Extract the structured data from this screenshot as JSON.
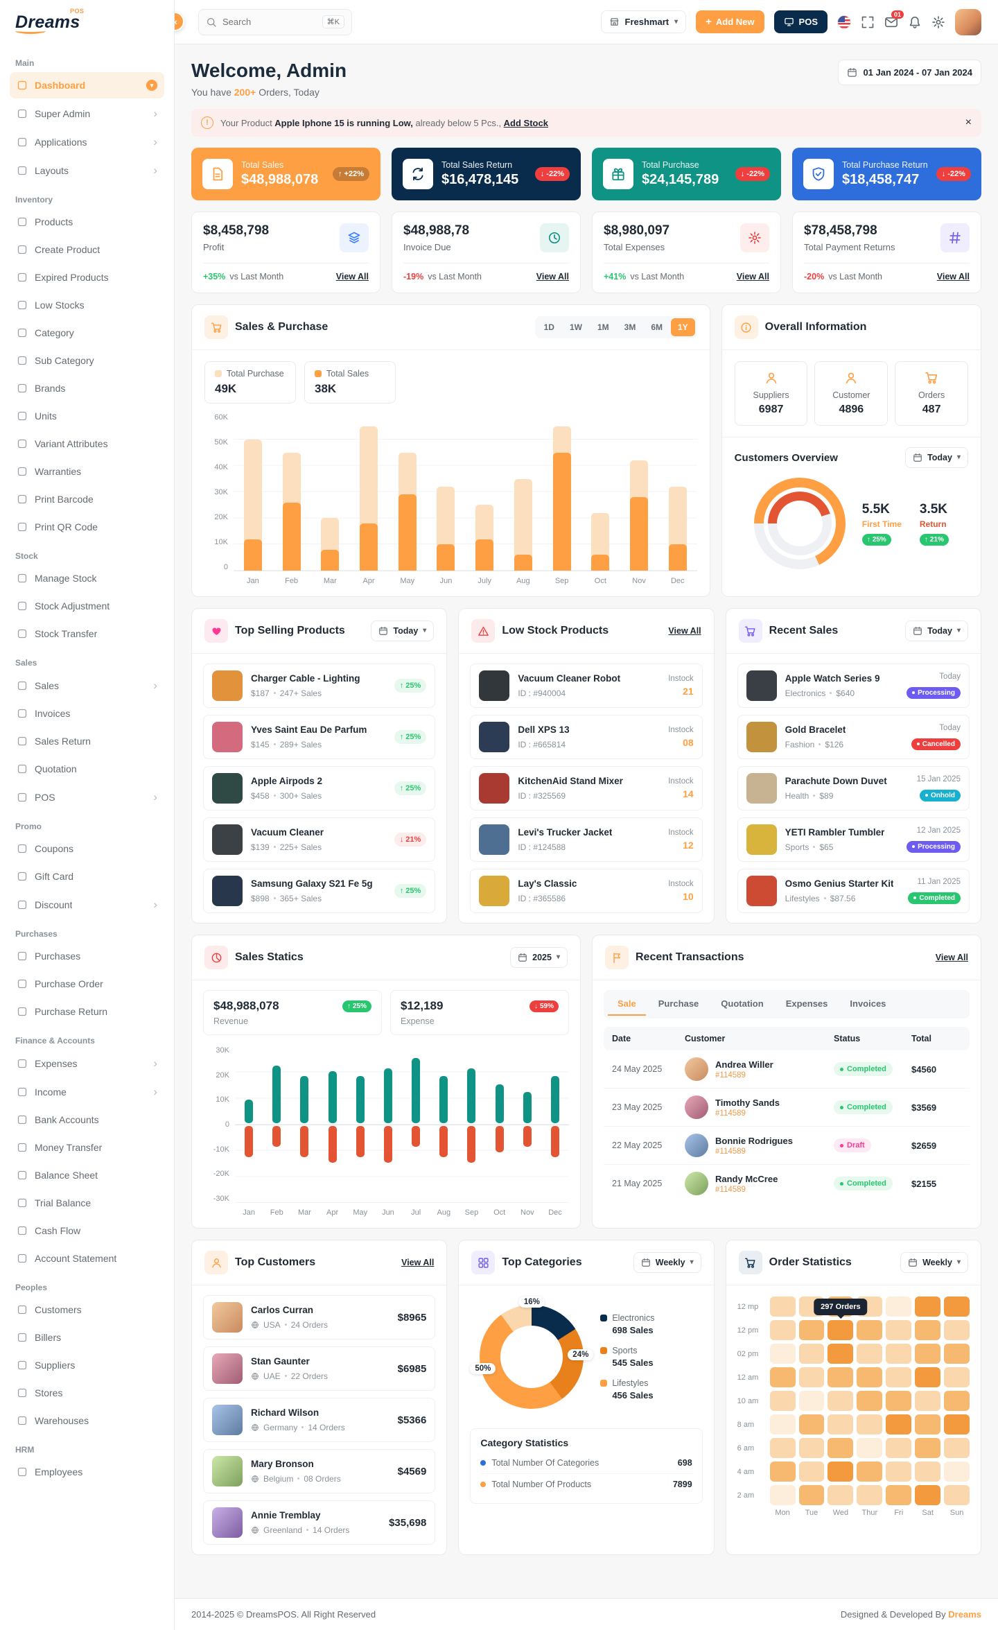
{
  "theme": {
    "primary": "#FE9F43",
    "secondary": "#092C4C",
    "success": "#28C76F",
    "danger": "#EF3E3E",
    "teal": "#0E9384",
    "blue": "#2E6EDC",
    "purple": "#6E5BF0",
    "pink": "#FD3995",
    "cyan": "#17B0CE"
  },
  "brand": {
    "name": "Dreams",
    "badge": "POS"
  },
  "header": {
    "search_placeholder": "Search",
    "search_shortcut": "⌘K",
    "store": "Freshmart",
    "add_new": "Add New",
    "pos": "POS",
    "mail_badge": "01"
  },
  "sidebar": {
    "sections": [
      {
        "title": "Main",
        "items": [
          {
            "label": "Dashboard",
            "icon": "dashboard-icon",
            "chevron": "down",
            "active": true
          },
          {
            "label": "Super Admin",
            "icon": "super-admin-icon",
            "chevron": "right"
          },
          {
            "label": "Applications",
            "icon": "applications-icon",
            "chevron": "right"
          },
          {
            "label": "Layouts",
            "icon": "layouts-icon",
            "chevron": "right"
          }
        ]
      },
      {
        "title": "Inventory",
        "items": [
          {
            "label": "Products",
            "icon": "products-icon"
          },
          {
            "label": "Create Product",
            "icon": "create-product-icon"
          },
          {
            "label": "Expired Products",
            "icon": "expired-products-icon"
          },
          {
            "label": "Low Stocks",
            "icon": "low-stocks-icon"
          },
          {
            "label": "Category",
            "icon": "category-icon"
          },
          {
            "label": "Sub Category",
            "icon": "sub-category-icon"
          },
          {
            "label": "Brands",
            "icon": "brands-icon"
          },
          {
            "label": "Units",
            "icon": "units-icon"
          },
          {
            "label": "Variant Attributes",
            "icon": "variant-attributes-icon"
          },
          {
            "label": "Warranties",
            "icon": "warranties-icon"
          },
          {
            "label": "Print Barcode",
            "icon": "print-barcode-icon"
          },
          {
            "label": "Print QR Code",
            "icon": "print-qr-code-icon"
          }
        ]
      },
      {
        "title": "Stock",
        "items": [
          {
            "label": "Manage Stock",
            "icon": "manage-stock-icon"
          },
          {
            "label": "Stock Adjustment",
            "icon": "stock-adjustment-icon"
          },
          {
            "label": "Stock Transfer",
            "icon": "stock-transfer-icon"
          }
        ]
      },
      {
        "title": "Sales",
        "items": [
          {
            "label": "Sales",
            "icon": "sales-icon",
            "chevron": "right"
          },
          {
            "label": "Invoices",
            "icon": "invoices-icon"
          },
          {
            "label": "Sales Return",
            "icon": "sales-return-icon"
          },
          {
            "label": "Quotation",
            "icon": "quotation-icon"
          },
          {
            "label": "POS",
            "icon": "pos-icon",
            "chevron": "right"
          }
        ]
      },
      {
        "title": "Promo",
        "items": [
          {
            "label": "Coupons",
            "icon": "coupons-icon"
          },
          {
            "label": "Gift Card",
            "icon": "gift-card-icon"
          },
          {
            "label": "Discount",
            "icon": "discount-icon",
            "chevron": "right"
          }
        ]
      },
      {
        "title": "Purchases",
        "items": [
          {
            "label": "Purchases",
            "icon": "purchases-icon"
          },
          {
            "label": "Purchase Order",
            "icon": "purchase-order-icon"
          },
          {
            "label": "Purchase Return",
            "icon": "purchase-return-icon"
          }
        ]
      },
      {
        "title": "Finance & Accounts",
        "items": [
          {
            "label": "Expenses",
            "icon": "expenses-icon",
            "chevron": "right"
          },
          {
            "label": "Income",
            "icon": "income-icon",
            "chevron": "right"
          },
          {
            "label": "Bank Accounts",
            "icon": "bank-accounts-icon"
          },
          {
            "label": "Money Transfer",
            "icon": "money-transfer-icon"
          },
          {
            "label": "Balance Sheet",
            "icon": "balance-sheet-icon"
          },
          {
            "label": "Trial Balance",
            "icon": "trial-balance-icon"
          },
          {
            "label": "Cash Flow",
            "icon": "cash-flow-icon"
          },
          {
            "label": "Account Statement",
            "icon": "account-statement-icon"
          }
        ]
      },
      {
        "title": "Peoples",
        "items": [
          {
            "label": "Customers",
            "icon": "customers-icon"
          },
          {
            "label": "Billers",
            "icon": "billers-icon"
          },
          {
            "label": "Suppliers",
            "icon": "suppliers-icon"
          },
          {
            "label": "Stores",
            "icon": "stores-icon"
          },
          {
            "label": "Warehouses",
            "icon": "warehouses-icon"
          }
        ]
      },
      {
        "title": "HRM",
        "items": [
          {
            "label": "Employees",
            "icon": "employees-icon"
          }
        ]
      }
    ]
  },
  "welcome": {
    "title": "Welcome, Admin",
    "sub_prefix": "You have ",
    "sub_highlight": "200+",
    "sub_suffix": " Orders, Today",
    "date_range": "01 Jan 2024 - 07 Jan 2024"
  },
  "alert": {
    "prefix": "Your Product ",
    "bold": "Apple Iphone 15 is running Low,",
    "suffix": " already below 5 Pcs., ",
    "link_label": "Add Stock"
  },
  "kpi_cards": [
    {
      "label": "Total Sales",
      "value": "$48,988,078",
      "delta": "+22%",
      "trend": "up",
      "bg": "#FE9F43",
      "icon": "filetext",
      "icon_name": "file-text-icon"
    },
    {
      "label": "Total Sales Return",
      "value": "$16,478,145",
      "delta": "-22%",
      "trend": "down",
      "bg": "#092C4C",
      "icon": "repeat",
      "icon_name": "repeat-icon"
    },
    {
      "label": "Total Purchase",
      "value": "$24,145,789",
      "delta": "-22%",
      "trend": "down",
      "bg": "#0E9384",
      "icon": "gift",
      "icon_name": "gift-icon"
    },
    {
      "label": "Total Purchase Return",
      "value": "$18,458,747",
      "delta": "-22%",
      "trend": "down",
      "bg": "#2E6EDC",
      "icon": "shield",
      "icon_name": "shield-icon"
    }
  ],
  "mini_cards": [
    {
      "value": "$8,458,798",
      "label": "Profit",
      "delta": "+35%",
      "trend": "up",
      "note": "vs Last Month",
      "link": "View All",
      "icon": "layers",
      "icon_name": "layers-icon",
      "icon_color": "#377DFF",
      "icon_bg": "#EDF3FE"
    },
    {
      "value": "$48,988,78",
      "label": "Invoice Due",
      "delta": "-19%",
      "trend": "down",
      "note": "vs Last Month",
      "link": "View All",
      "icon": "clock",
      "icon_name": "clock-icon",
      "icon_color": "#0E9384",
      "icon_bg": "#E6F5F2"
    },
    {
      "value": "$8,980,097",
      "label": "Total Expenses",
      "delta": "+41%",
      "trend": "up",
      "note": "vs Last Month",
      "link": "View All",
      "icon": "gear",
      "icon_name": "gear-icon",
      "icon_color": "#EF3E3E",
      "icon_bg": "#FDEDED"
    },
    {
      "value": "$78,458,798",
      "label": "Total Payment Returns",
      "delta": "-20%",
      "trend": "down",
      "note": "vs Last Month",
      "link": "View All",
      "icon": "hash",
      "icon_name": "hash-icon",
      "icon_color": "#6E5BF0",
      "icon_bg": "#EFEDFE"
    }
  ],
  "sales_purchase": {
    "title": "Sales & Purchase",
    "ranges": [
      "1D",
      "1W",
      "1M",
      "3M",
      "6M",
      "1Y"
    ],
    "active_range": "1Y",
    "legend": [
      {
        "label": "Total Purchase",
        "value": "49K",
        "color": "#FCDFBE"
      },
      {
        "label": "Total Sales",
        "value": "38K",
        "color": "#FE9F43"
      }
    ],
    "chart": {
      "type": "bar",
      "months": [
        "Jan",
        "Feb",
        "Mar",
        "Apr",
        "May",
        "Jun",
        "July",
        "Aug",
        "Sep",
        "Oct",
        "Nov",
        "Dec"
      ],
      "purchase": [
        50,
        45,
        20,
        55,
        45,
        32,
        25,
        35,
        55,
        22,
        42,
        32
      ],
      "sales": [
        12,
        26,
        8,
        18,
        29,
        10,
        12,
        6,
        45,
        6,
        28,
        10
      ],
      "y_ticks": [
        "60K",
        "50K",
        "40K",
        "30K",
        "20K",
        "10K",
        "0"
      ],
      "y_max": 60,
      "colors": {
        "purchase": "#FCDFBE",
        "sales": "#FE9F43"
      }
    }
  },
  "overall": {
    "title": "Overall Information",
    "tiles": [
      {
        "icon": "user",
        "icon_name": "suppliers-icon",
        "label": "Suppliers",
        "value": "6987"
      },
      {
        "icon": "user",
        "icon_name": "customer-icon",
        "label": "Customer",
        "value": "4896"
      },
      {
        "icon": "cart",
        "icon_name": "orders-icon",
        "label": "Orders",
        "value": "487"
      }
    ],
    "customers_overview": {
      "title": "Customers Overview",
      "filter": "Today",
      "chart": {
        "type": "donut",
        "first_time_pct": 68,
        "return_pct": 45
      },
      "first_time": {
        "value": "5.5K",
        "label": "First Time",
        "delta": "25%"
      },
      "returning": {
        "value": "3.5K",
        "label": "Return",
        "delta": "21%"
      }
    }
  },
  "top_selling": {
    "title": "Top Selling Products",
    "filter": "Today",
    "items": [
      {
        "name": "Charger Cable - Lighting",
        "price": "$187",
        "sales": "247+ Sales",
        "delta": "25%",
        "trend": "up",
        "thumb": "#E2923B"
      },
      {
        "name": "Yves Saint Eau De Parfum",
        "price": "$145",
        "sales": "289+ Sales",
        "delta": "25%",
        "trend": "up",
        "thumb": "#D46A7E"
      },
      {
        "name": "Apple Airpods 2",
        "price": "$458",
        "sales": "300+ Sales",
        "delta": "25%",
        "trend": "up",
        "thumb": "#2F4A44"
      },
      {
        "name": "Vacuum Cleaner",
        "price": "$139",
        "sales": "225+ Sales",
        "delta": "21%",
        "trend": "down",
        "thumb": "#3C4146"
      },
      {
        "name": "Samsung Galaxy S21 Fe 5g",
        "price": "$898",
        "sales": "365+ Sales",
        "delta": "25%",
        "trend": "up",
        "thumb": "#28374C"
      }
    ]
  },
  "low_stock": {
    "title": "Low Stock Products",
    "link": "View All",
    "items": [
      {
        "name": "Vacuum Cleaner Robot",
        "id": "ID : #940004",
        "instock_label": "Instock",
        "qty": "21",
        "thumb": "#32373B"
      },
      {
        "name": "Dell XPS 13",
        "id": "ID : #665814",
        "instock_label": "Instock",
        "qty": "08",
        "thumb": "#2C3C55"
      },
      {
        "name": "KitchenAid Stand Mixer",
        "id": "ID : #325569",
        "instock_label": "Instock",
        "qty": "14",
        "thumb": "#A93A32"
      },
      {
        "name": "Levi's Trucker Jacket",
        "id": "ID : #124588",
        "instock_label": "Instock",
        "qty": "12",
        "thumb": "#4E6F92"
      },
      {
        "name": "Lay's Classic",
        "id": "ID : #365586",
        "instock_label": "Instock",
        "qty": "10",
        "thumb": "#D9A93A"
      }
    ]
  },
  "recent_sales": {
    "title": "Recent Sales",
    "filter": "Today",
    "items": [
      {
        "name": "Apple Watch Series 9",
        "category": "Electronics",
        "price": "$640",
        "date": "Today",
        "status": "Processing",
        "status_color": "#6E5BF0",
        "thumb": "#3A3F46"
      },
      {
        "name": "Gold Bracelet",
        "category": "Fashion",
        "price": "$126",
        "date": "Today",
        "status": "Cancelled",
        "status_color": "#EF3E3E",
        "thumb": "#C2923C"
      },
      {
        "name": "Parachute Down Duvet",
        "category": "Health",
        "price": "$89",
        "date": "15 Jan 2025",
        "status": "Onhold",
        "status_color": "#17B0CE",
        "thumb": "#C7B292"
      },
      {
        "name": "YETI Rambler Tumbler",
        "category": "Sports",
        "price": "$65",
        "date": "12 Jan 2025",
        "status": "Processing",
        "status_color": "#6E5BF0",
        "thumb": "#D9B43C"
      },
      {
        "name": "Osmo Genius Starter Kit",
        "category": "Lifestyles",
        "price": "$87.56",
        "date": "11 Jan 2025",
        "status": "Completed",
        "status_color": "#28C76F",
        "thumb": "#CE4B33"
      }
    ]
  },
  "sales_statics": {
    "title": "Sales Statics",
    "year": "2025",
    "revenue": {
      "value": "$48,988,078",
      "delta": "25%",
      "trend": "up",
      "label": "Revenue"
    },
    "expense": {
      "value": "$12,189",
      "delta": "59%",
      "trend": "down",
      "label": "Expense"
    },
    "chart": {
      "type": "bar",
      "months": [
        "Jan",
        "Feb",
        "Mar",
        "Apr",
        "May",
        "Jun",
        "Jul",
        "Aug",
        "Sep",
        "Oct",
        "Nov",
        "Dec"
      ],
      "revenue": [
        9,
        22,
        18,
        20,
        18,
        21,
        25,
        18,
        21,
        15,
        12,
        18
      ],
      "expense": [
        12,
        8,
        12,
        14,
        12,
        14,
        8,
        12,
        14,
        10,
        8,
        12
      ],
      "y_ticks": [
        "30K",
        "20K",
        "10K",
        "0",
        "-10K",
        "-20K",
        "-30K"
      ],
      "y_max": 30,
      "colors": {
        "revenue": "#0E9384",
        "expense": "#E35432"
      }
    }
  },
  "transactions": {
    "title": "Recent Transactions",
    "link": "View All",
    "tabs": [
      "Sale",
      "Purchase",
      "Quotation",
      "Expenses",
      "Invoices"
    ],
    "active_tab": "Sale",
    "headers": [
      "Date",
      "Customer",
      "Status",
      "Total"
    ],
    "rows": [
      {
        "date": "24 May 2025",
        "name": "Andrea Willer",
        "ref": "#114589",
        "status": "Completed",
        "status_type": "green",
        "total": "$4560"
      },
      {
        "date": "23 May 2025",
        "name": "Timothy Sands",
        "ref": "#114589",
        "status": "Completed",
        "status_type": "green",
        "total": "$3569"
      },
      {
        "date": "22 May 2025",
        "name": "Bonnie Rodrigues",
        "ref": "#114589",
        "status": "Draft",
        "status_type": "pink",
        "total": "$2659"
      },
      {
        "date": "21 May 2025",
        "name": "Randy McCree",
        "ref": "#114589",
        "status": "Completed",
        "status_type": "green",
        "total": "$2155"
      }
    ]
  },
  "top_customers": {
    "title": "Top Customers",
    "link": "View All",
    "items": [
      {
        "name": "Carlos Curran",
        "country": "USA",
        "orders": "24 Orders",
        "amount": "$8965"
      },
      {
        "name": "Stan Gaunter",
        "country": "UAE",
        "orders": "22 Orders",
        "amount": "$6985"
      },
      {
        "name": "Richard Wilson",
        "country": "Germany",
        "orders": "14 Orders",
        "amount": "$5366"
      },
      {
        "name": "Mary Bronson",
        "country": "Belgium",
        "orders": "08 Orders",
        "amount": "$4569"
      },
      {
        "name": "Annie Tremblay",
        "country": "Greenland",
        "orders": "14 Orders",
        "amount": "$35,698"
      }
    ]
  },
  "top_categories": {
    "title": "Top Categories",
    "filter": "Weekly",
    "chart": {
      "type": "donut",
      "segments": [
        {
          "label": "Electronics",
          "sales": "698 Sales",
          "pct": 16,
          "color": "#092C4C"
        },
        {
          "label": "Sports",
          "sales": "545 Sales",
          "pct": 24,
          "color": "#E8811C"
        },
        {
          "label": "Lifestyles",
          "sales": "456 Sales",
          "pct": 50,
          "color": "#FE9F43"
        }
      ],
      "filler_pct": 10,
      "filler_color": "#FBD7AD",
      "labels": [
        {
          "text": "16%",
          "pos": "top"
        },
        {
          "text": "24%",
          "pos": "right"
        },
        {
          "text": "50%",
          "pos": "left"
        }
      ]
    },
    "stats_title": "Category Statistics",
    "stats": [
      {
        "label": "Total Number Of Categories",
        "value": "698",
        "dot": "#2E6EDC"
      },
      {
        "label": "Total Number Of Products",
        "value": "7899",
        "dot": "#FE9F43"
      }
    ]
  },
  "order_stats": {
    "title": "Order Statistics",
    "filter": "Weekly",
    "chart": {
      "type": "heatmap",
      "rows": [
        "12 mp",
        "12 pm",
        "02 pm",
        "12 am",
        "10 am",
        "8 am",
        "6 am",
        "4 am",
        "2 am"
      ],
      "cols": [
        "Mon",
        "Tue",
        "Wed",
        "Thur",
        "Fri",
        "Sat",
        "Sun"
      ],
      "matrix": [
        [
          1,
          1,
          2,
          1,
          0,
          3,
          3
        ],
        [
          1,
          2,
          3,
          2,
          1,
          2,
          1
        ],
        [
          0,
          1,
          3,
          1,
          1,
          2,
          2
        ],
        [
          2,
          1,
          2,
          2,
          1,
          3,
          1
        ],
        [
          1,
          0,
          1,
          2,
          2,
          1,
          2
        ],
        [
          0,
          2,
          1,
          1,
          3,
          2,
          3
        ],
        [
          1,
          1,
          2,
          0,
          1,
          2,
          1
        ],
        [
          2,
          1,
          3,
          2,
          1,
          1,
          0
        ],
        [
          0,
          2,
          1,
          1,
          2,
          3,
          1
        ]
      ],
      "levels": [
        "#FDEEDC",
        "#FAD7AC",
        "#F7B96F",
        "#F49A3E"
      ],
      "tooltip": {
        "row": 1,
        "col": 2,
        "text": "297 Orders"
      }
    }
  },
  "footer": {
    "copyright": "2014-2025 © DreamsPOS. All Right Reserved",
    "designed_prefix": "Designed & Developed By ",
    "designed_brand": "Dreams"
  }
}
